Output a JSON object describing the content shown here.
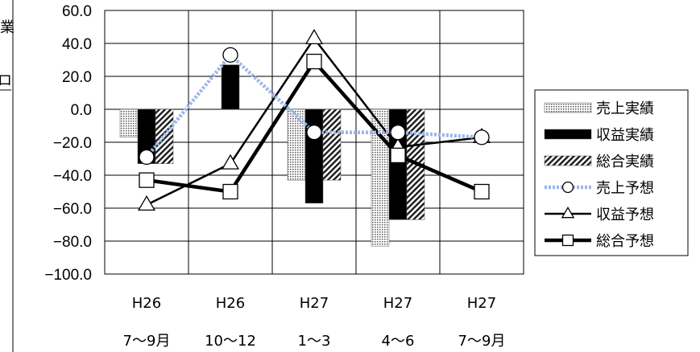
{
  "page_fragments": {
    "top_char": "業",
    "mid_char": "ロ"
  },
  "chart_data": {
    "type": "bar",
    "categories": [
      [
        "H26",
        "7〜9月"
      ],
      [
        "H26",
        "10〜12"
      ],
      [
        "H27",
        "1〜3"
      ],
      [
        "H27",
        "4〜6"
      ],
      [
        "H27",
        "7〜9月"
      ]
    ],
    "ylim": [
      -100,
      60
    ],
    "yticks": [
      60,
      40,
      20,
      0,
      -20,
      -40,
      -60,
      -80,
      -100
    ],
    "ytick_labels": [
      "60.0",
      "40.0",
      "20.0",
      "0.0",
      "−20.0",
      "−40.0",
      "−60.0",
      "−80.0",
      "−100.0"
    ],
    "grid": true,
    "legend_position": "right",
    "series": [
      {
        "name": "売上実績",
        "kind": "bar",
        "style": "dotted",
        "values": [
          -17,
          null,
          -43,
          -83,
          null
        ]
      },
      {
        "name": "収益実績",
        "kind": "bar",
        "style": "solid",
        "values": [
          -33,
          27,
          -57,
          -67,
          null
        ]
      },
      {
        "name": "総合実績",
        "kind": "bar",
        "style": "hatched",
        "values": [
          -33,
          null,
          -43,
          -67,
          null
        ]
      },
      {
        "name": "売上予想",
        "kind": "line",
        "style": "dotted-blue-circle",
        "values": [
          -29,
          33,
          -14,
          -14,
          -17
        ]
      },
      {
        "name": "収益予想",
        "kind": "line",
        "style": "black-triangle",
        "values": [
          -58,
          -33,
          43,
          -23,
          -17
        ]
      },
      {
        "name": "総合予想",
        "kind": "line",
        "style": "thick-black-square",
        "values": [
          -43,
          -50,
          29,
          -28,
          -50
        ]
      }
    ],
    "colors": {
      "bar_dark": "#000000",
      "forecast_sales_line": "#9db5e8",
      "grid": "#000000"
    }
  }
}
